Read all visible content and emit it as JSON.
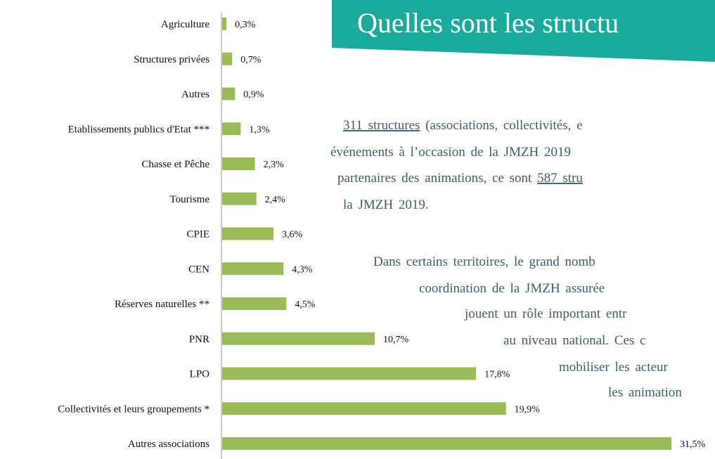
{
  "chart_data": {
    "type": "hbar",
    "categories": [
      "Agriculture",
      "Structures privées",
      "Autres",
      "Etablissements publics d'Etat ***",
      "Chasse et Pêche",
      "Tourisme",
      "CPIE",
      "CEN",
      "Réserves naturelles **",
      "PNR",
      "LPO",
      "Collectivités et leurs groupements *",
      "Autres associations"
    ],
    "values": [
      0.3,
      0.7,
      0.9,
      1.3,
      2.3,
      2.4,
      3.6,
      4.3,
      4.5,
      10.7,
      17.8,
      19.9,
      31.5
    ],
    "value_labels": [
      "0,3%",
      "0,7%",
      "0,9%",
      "1,3%",
      "2,3%",
      "2,4%",
      "3,6%",
      "4,3%",
      "4,5%",
      "10,7%",
      "17,8%",
      "19,9%",
      "31,5%"
    ],
    "color": "#9bbb59"
  },
  "slide": {
    "title": "Quelles sont les structu",
    "paragraphs": [
      [
        [
          {
            "text": "311 structures",
            "underline": true
          },
          {
            "text": " (associations, collectivités, e"
          }
        ],
        [
          {
            "text": "événements à l’occasion de la JMZH 2019"
          }
        ],
        [
          {
            "text": "partenaires des animations, ce sont "
          },
          {
            "text": "587 stru",
            "underline": true
          }
        ],
        [
          {
            "text": "la JMZH 2019."
          }
        ]
      ],
      [
        [
          {
            "text": "Dans certains territoires, le grand nomb"
          }
        ],
        [
          {
            "text": "coordination de la JMZH assurée "
          }
        ],
        [
          {
            "text": "jouent un rôle important entr"
          }
        ],
        [
          {
            "text": "au niveau national. Ces c"
          }
        ],
        [
          {
            "text": "mobiliser les acteur"
          }
        ],
        [
          {
            "text": "les animation"
          }
        ]
      ]
    ]
  }
}
